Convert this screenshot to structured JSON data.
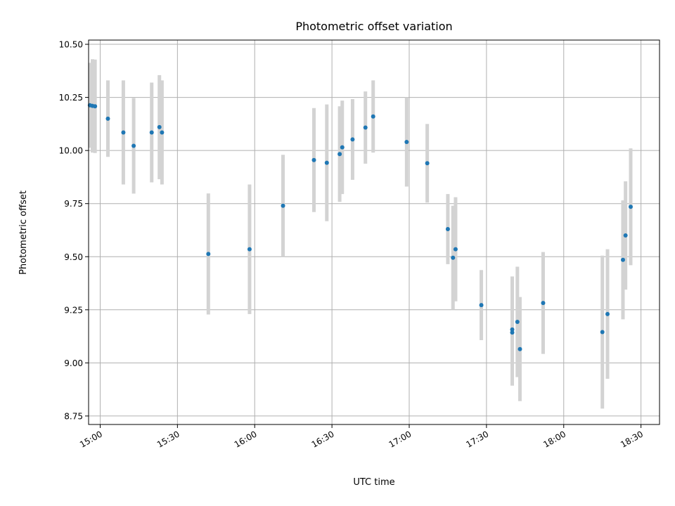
{
  "chart_data": {
    "type": "scatter",
    "title": "Photometric offset variation",
    "xlabel": "UTC time",
    "ylabel": "Photometric offset",
    "x_ticks": [
      "15:00",
      "15:30",
      "16:00",
      "16:30",
      "17:00",
      "17:30",
      "18:00",
      "18:30"
    ],
    "y_ticks": [
      "8.75",
      "9.00",
      "9.25",
      "9.50",
      "9.75",
      "10.00",
      "10.25",
      "10.50"
    ],
    "xlim": [
      "14:56",
      "18:37"
    ],
    "ylim": [
      8.71,
      10.52
    ],
    "grid": true,
    "error_bars": true,
    "point_color": "#1f77b4",
    "errorbar_color": "#d3d3d3",
    "points": [
      {
        "x": "14:56",
        "y": 10.213,
        "err": 0.2
      },
      {
        "x": "14:57",
        "y": 10.21,
        "err": 0.22
      },
      {
        "x": "14:58",
        "y": 10.208,
        "err": 0.22
      },
      {
        "x": "15:03",
        "y": 10.15,
        "err": 0.18
      },
      {
        "x": "15:09",
        "y": 10.085,
        "err": 0.245
      },
      {
        "x": "15:13",
        "y": 10.022,
        "err": 0.225
      },
      {
        "x": "15:20",
        "y": 10.085,
        "err": 0.235
      },
      {
        "x": "15:23",
        "y": 10.11,
        "err": 0.245
      },
      {
        "x": "15:24",
        "y": 10.085,
        "err": 0.245
      },
      {
        "x": "15:42",
        "y": 9.513,
        "err": 0.285
      },
      {
        "x": "15:58",
        "y": 9.535,
        "err": 0.305
      },
      {
        "x": "16:11",
        "y": 9.74,
        "err": 0.24
      },
      {
        "x": "16:23",
        "y": 9.955,
        "err": 0.245
      },
      {
        "x": "16:28",
        "y": 9.942,
        "err": 0.275
      },
      {
        "x": "16:33",
        "y": 9.983,
        "err": 0.225
      },
      {
        "x": "16:34",
        "y": 10.015,
        "err": 0.22
      },
      {
        "x": "16:38",
        "y": 10.052,
        "err": 0.19
      },
      {
        "x": "16:43",
        "y": 10.108,
        "err": 0.17
      },
      {
        "x": "16:46",
        "y": 10.16,
        "err": 0.17
      },
      {
        "x": "16:59",
        "y": 10.04,
        "err": 0.21
      },
      {
        "x": "17:07",
        "y": 9.94,
        "err": 0.185
      },
      {
        "x": "17:15",
        "y": 9.63,
        "err": 0.165
      },
      {
        "x": "17:17",
        "y": 9.495,
        "err": 0.245
      },
      {
        "x": "17:18",
        "y": 9.535,
        "err": 0.245
      },
      {
        "x": "17:28",
        "y": 9.272,
        "err": 0.165
      },
      {
        "x": "17:40",
        "y": 9.157,
        "err": 0.25
      },
      {
        "x": "17:40",
        "y": 9.143,
        "err": 0.25
      },
      {
        "x": "17:42",
        "y": 9.193,
        "err": 0.26
      },
      {
        "x": "17:43",
        "y": 9.065,
        "err": 0.245
      },
      {
        "x": "17:52",
        "y": 9.282,
        "err": 0.24
      },
      {
        "x": "18:15",
        "y": 9.145,
        "err": 0.36
      },
      {
        "x": "18:17",
        "y": 9.23,
        "err": 0.305
      },
      {
        "x": "18:23",
        "y": 9.485,
        "err": 0.28
      },
      {
        "x": "18:24",
        "y": 9.6,
        "err": 0.255
      },
      {
        "x": "18:26",
        "y": 9.735,
        "err": 0.275
      }
    ]
  }
}
